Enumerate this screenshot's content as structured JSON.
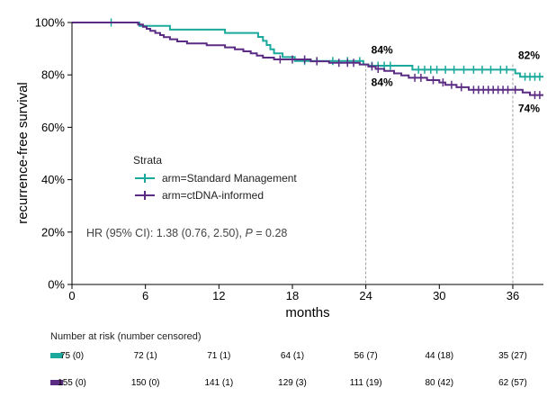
{
  "chart_data": {
    "type": "line",
    "subtype": "kaplan-meier",
    "title": "",
    "xlabel": "months",
    "ylabel": "recurrence-free survival",
    "xlim": [
      0,
      38.5
    ],
    "ylim": [
      0,
      100
    ],
    "x_ticks": [
      0,
      6,
      12,
      18,
      24,
      30,
      36
    ],
    "x_tick_labels": [
      "0",
      "6",
      "12",
      "18",
      "24",
      "30",
      "36"
    ],
    "y_ticks": [
      0,
      20,
      40,
      60,
      80,
      100
    ],
    "y_tick_labels": [
      "0%",
      "20%",
      "40%",
      "60%",
      "80%",
      "100%"
    ],
    "reference_lines": [
      {
        "x": 24,
        "style": "dashed"
      },
      {
        "x": 36,
        "style": "dashed"
      }
    ],
    "legend": {
      "title": "Strata",
      "position": "middle-left",
      "entries": [
        "arm=Standard Management",
        "arm=ctDNA-informed"
      ]
    },
    "hr_text": {
      "prefix": "HR (95% CI): 1.38 (0.76, 2.50), ",
      "p_label": "P",
      "suffix": " = 0.28"
    },
    "annotations": [
      {
        "text": "84%",
        "x": 24,
        "y": 84,
        "series": 0
      },
      {
        "text": "84%",
        "x": 24,
        "y": 84,
        "series": 1
      },
      {
        "text": "82%",
        "x": 36,
        "y": 82,
        "series": 0
      },
      {
        "text": "74%",
        "x": 36,
        "y": 74,
        "series": 1
      }
    ],
    "series": [
      {
        "name": "arm=Standard Management",
        "color": "#1aa99c",
        "steps": [
          [
            0,
            100
          ],
          [
            5.5,
            98.7
          ],
          [
            8,
            97.3
          ],
          [
            12.5,
            96
          ],
          [
            15.2,
            94.5
          ],
          [
            15.6,
            93
          ],
          [
            15.9,
            91.4
          ],
          [
            16.2,
            89.8
          ],
          [
            16.5,
            88.2
          ],
          [
            17.2,
            86.8
          ],
          [
            18.2,
            85.3
          ],
          [
            23.8,
            84
          ],
          [
            24.2,
            83.5
          ],
          [
            27.8,
            82
          ],
          [
            36.2,
            80.6
          ],
          [
            36.6,
            79.3
          ],
          [
            38.5,
            79.3
          ]
        ],
        "censored": [
          [
            3.2,
            100
          ],
          [
            19,
            85.3
          ],
          [
            20,
            85.3
          ],
          [
            21.3,
            85.3
          ],
          [
            22.5,
            85.3
          ],
          [
            23.5,
            85.3
          ],
          [
            24.5,
            83.5
          ],
          [
            25,
            83.5
          ],
          [
            25.5,
            83.5
          ],
          [
            26,
            83.5
          ],
          [
            28.3,
            82
          ],
          [
            28.8,
            82
          ],
          [
            29.3,
            82
          ],
          [
            29.8,
            82
          ],
          [
            30.5,
            82
          ],
          [
            31.2,
            82
          ],
          [
            32,
            82
          ],
          [
            32.8,
            82
          ],
          [
            33.5,
            82
          ],
          [
            34.2,
            82
          ],
          [
            35,
            82
          ],
          [
            35.5,
            82
          ],
          [
            37,
            79.3
          ],
          [
            37.4,
            79.3
          ],
          [
            37.8,
            79.3
          ],
          [
            38.2,
            79.3
          ]
        ]
      },
      {
        "name": "arm=ctDNA-informed",
        "color": "#5b2c83",
        "steps": [
          [
            0,
            100
          ],
          [
            5.4,
            99.2
          ],
          [
            5.8,
            98.4
          ],
          [
            6.1,
            97.6
          ],
          [
            6.4,
            96.8
          ],
          [
            6.8,
            96
          ],
          [
            7.2,
            95.2
          ],
          [
            7.5,
            94.4
          ],
          [
            8,
            93.6
          ],
          [
            8.6,
            92.8
          ],
          [
            9.4,
            92
          ],
          [
            11,
            91.3
          ],
          [
            12.5,
            90.5
          ],
          [
            13.3,
            89.8
          ],
          [
            14,
            89
          ],
          [
            14.6,
            88.2
          ],
          [
            15.1,
            87.4
          ],
          [
            15.6,
            86.6
          ],
          [
            16.5,
            85.9
          ],
          [
            19.5,
            85.2
          ],
          [
            21,
            84.6
          ],
          [
            23.5,
            84
          ],
          [
            24.2,
            83.2
          ],
          [
            24.8,
            82.3
          ],
          [
            25.5,
            81.5
          ],
          [
            26.3,
            80.6
          ],
          [
            26.9,
            79.8
          ],
          [
            27.5,
            78.9
          ],
          [
            29,
            78
          ],
          [
            30,
            77.1
          ],
          [
            30.5,
            76.2
          ],
          [
            31.4,
            75.3
          ],
          [
            32.4,
            74.3
          ],
          [
            36.8,
            73.3
          ],
          [
            37.4,
            72.3
          ],
          [
            38.5,
            72.3
          ]
        ],
        "censored": [
          [
            17,
            85.9
          ],
          [
            18,
            85.9
          ],
          [
            19,
            85.9
          ],
          [
            20,
            85.2
          ],
          [
            21.8,
            84.6
          ],
          [
            22.5,
            84.6
          ],
          [
            23,
            84.6
          ],
          [
            24.5,
            83.2
          ],
          [
            25,
            82.3
          ],
          [
            28,
            78.9
          ],
          [
            28.5,
            78.9
          ],
          [
            29.5,
            78
          ],
          [
            30.3,
            77.1
          ],
          [
            31,
            76.2
          ],
          [
            31.8,
            75.3
          ],
          [
            32.8,
            74.3
          ],
          [
            33.2,
            74.3
          ],
          [
            33.6,
            74.3
          ],
          [
            34,
            74.3
          ],
          [
            34.4,
            74.3
          ],
          [
            34.8,
            74.3
          ],
          [
            35.2,
            74.3
          ],
          [
            35.6,
            74.3
          ],
          [
            36.2,
            74.3
          ],
          [
            37.8,
            72.3
          ],
          [
            38.2,
            72.3
          ]
        ]
      }
    ],
    "risk_table": {
      "title": "Number at risk (number censored)",
      "times": [
        0,
        6,
        12,
        18,
        24,
        30,
        36
      ],
      "rows": [
        {
          "name": "arm=Standard Management",
          "color": "#1aa99c",
          "values": [
            "75 (0)",
            "72 (1)",
            "71 (1)",
            "64 (1)",
            "56 (7)",
            "44 (18)",
            "35 (27)"
          ]
        },
        {
          "name": "arm=ctDNA-informed",
          "color": "#5b2c83",
          "values": [
            "155 (0)",
            "150 (0)",
            "141 (1)",
            "129 (3)",
            "111 (19)",
            "80 (42)",
            "62 (57)"
          ]
        }
      ]
    }
  }
}
